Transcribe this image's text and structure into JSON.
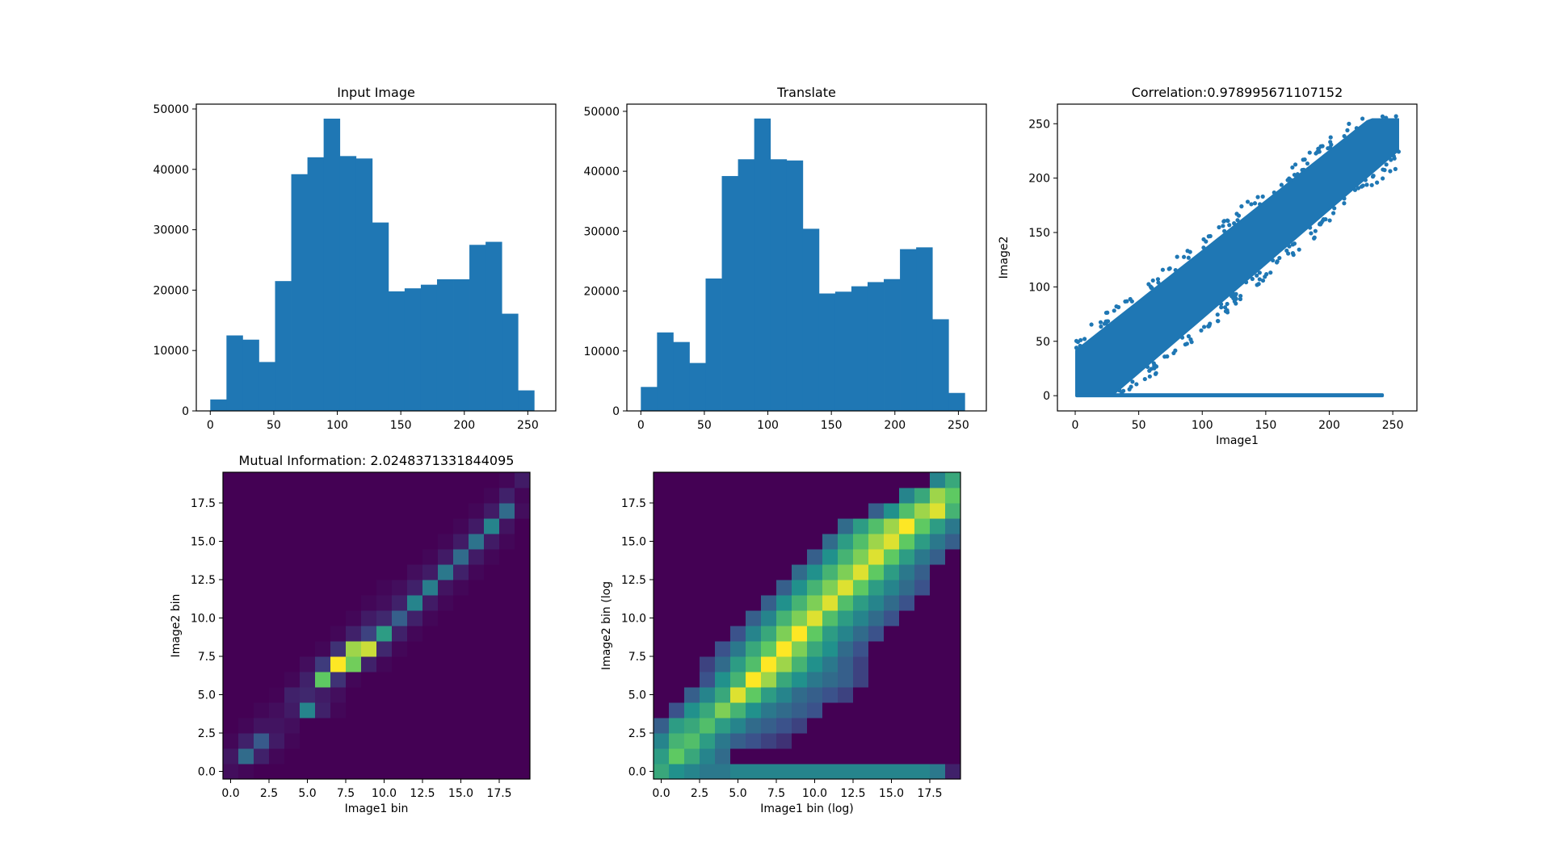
{
  "chart_data": [
    {
      "type": "bar",
      "title": "Input Image",
      "xlabel": "",
      "ylabel": "",
      "bin_edges": [
        0,
        12.75,
        25.5,
        38.25,
        51,
        63.75,
        76.5,
        89.25,
        102,
        114.75,
        127.5,
        140.25,
        153,
        165.75,
        178.5,
        191.25,
        204,
        216.75,
        229.5,
        242.25,
        255
      ],
      "values": [
        1900,
        12500,
        11800,
        8100,
        21500,
        39200,
        42000,
        48400,
        42200,
        41800,
        31200,
        19800,
        20300,
        20900,
        21800,
        21800,
        27500,
        28000,
        16100,
        3400
      ],
      "xlim": [
        -11,
        272
      ],
      "ylim": [
        0,
        50800
      ],
      "xticks": [
        0,
        50,
        100,
        150,
        200,
        250
      ],
      "yticks": [
        0,
        10000,
        20000,
        30000,
        40000,
        50000
      ],
      "color": "#1f77b4"
    },
    {
      "type": "bar",
      "title": "Translate",
      "xlabel": "",
      "ylabel": "",
      "bin_edges": [
        0,
        12.75,
        25.5,
        38.25,
        51,
        63.75,
        76.5,
        89.25,
        102,
        114.75,
        127.5,
        140.25,
        153,
        165.75,
        178.5,
        191.25,
        204,
        216.75,
        229.5,
        242.25,
        255
      ],
      "values": [
        4000,
        13100,
        11500,
        8000,
        22100,
        39200,
        42000,
        48800,
        42000,
        41800,
        30400,
        19600,
        19900,
        20800,
        21500,
        22000,
        27000,
        27300,
        15300,
        3000
      ],
      "xlim": [
        -11,
        272
      ],
      "ylim": [
        0,
        51200
      ],
      "xticks": [
        0,
        50,
        100,
        150,
        200,
        250
      ],
      "yticks": [
        0,
        10000,
        20000,
        30000,
        40000,
        50000
      ],
      "color": "#1f77b4"
    },
    {
      "type": "scatter",
      "title": "Correlation:0.978995671107152",
      "xlabel": "Image1",
      "ylabel": "Image2",
      "xlim": [
        -14,
        269
      ],
      "ylim": [
        -14,
        268
      ],
      "xticks": [
        0,
        50,
        100,
        150,
        200,
        250
      ],
      "yticks": [
        0,
        50,
        100,
        150,
        200,
        250
      ],
      "color": "#1f77b4",
      "diagonal_band": {
        "slope": 0.96,
        "intercept_lower_at_x0": 0,
        "intercept_upper_at_x0": 42,
        "upper_envelope_end": 255,
        "lower_envelope_end": 215
      },
      "zero_row": {
        "y": 0,
        "x_range": [
          0,
          243
        ]
      }
    },
    {
      "type": "heatmap",
      "title": "Mutual Information: 2.0248371331844095",
      "xlabel": "Image1 bin",
      "ylabel": "Image2 bin",
      "xticks": [
        0.0,
        2.5,
        5.0,
        7.5,
        10.0,
        12.5,
        15.0,
        17.5
      ],
      "yticks": [
        0.0,
        2.5,
        5.0,
        7.5,
        10.0,
        12.5,
        15.0,
        17.5
      ],
      "xlim": [
        -0.5,
        19.5
      ],
      "ylim": [
        -0.5,
        19.5
      ],
      "colormap": "viridis",
      "rows": [
        [
          0.04,
          0.02,
          0,
          0,
          0,
          0,
          0,
          0,
          0,
          0,
          0,
          0,
          0,
          0,
          0,
          0,
          0,
          0,
          0,
          0
        ],
        [
          0.07,
          0.35,
          0.1,
          0.02,
          0,
          0,
          0,
          0,
          0,
          0,
          0,
          0,
          0,
          0,
          0,
          0,
          0,
          0,
          0,
          0
        ],
        [
          0.02,
          0.1,
          0.28,
          0.08,
          0.02,
          0,
          0,
          0,
          0,
          0,
          0,
          0,
          0,
          0,
          0,
          0,
          0,
          0,
          0,
          0
        ],
        [
          0,
          0.02,
          0.06,
          0.06,
          0.04,
          0,
          0,
          0,
          0,
          0,
          0,
          0,
          0,
          0,
          0,
          0,
          0,
          0,
          0,
          0
        ],
        [
          0,
          0,
          0.02,
          0.04,
          0.08,
          0.45,
          0.1,
          0.02,
          0,
          0,
          0,
          0,
          0,
          0,
          0,
          0,
          0,
          0,
          0,
          0
        ],
        [
          0,
          0,
          0,
          0.01,
          0.1,
          0.12,
          0.08,
          0.04,
          0,
          0,
          0,
          0,
          0,
          0,
          0,
          0,
          0,
          0,
          0,
          0
        ],
        [
          0,
          0,
          0,
          0,
          0.02,
          0.1,
          0.75,
          0.15,
          0.02,
          0,
          0,
          0,
          0,
          0,
          0,
          0,
          0,
          0,
          0,
          0
        ],
        [
          0,
          0,
          0,
          0,
          0,
          0.04,
          0.18,
          1.0,
          0.78,
          0.1,
          0.02,
          0,
          0,
          0,
          0,
          0,
          0,
          0,
          0,
          0
        ],
        [
          0,
          0,
          0,
          0,
          0,
          0,
          0.02,
          0.15,
          0.85,
          0.92,
          0.12,
          0.02,
          0,
          0,
          0,
          0,
          0,
          0,
          0,
          0
        ],
        [
          0,
          0,
          0,
          0,
          0,
          0,
          0,
          0.02,
          0.1,
          0.2,
          0.55,
          0.1,
          0.02,
          0,
          0,
          0,
          0,
          0,
          0,
          0
        ],
        [
          0,
          0,
          0,
          0,
          0,
          0,
          0,
          0,
          0.02,
          0.08,
          0.12,
          0.3,
          0.1,
          0.02,
          0,
          0,
          0,
          0,
          0,
          0
        ],
        [
          0,
          0,
          0,
          0,
          0,
          0,
          0,
          0,
          0,
          0.02,
          0.04,
          0.1,
          0.45,
          0.08,
          0.02,
          0,
          0,
          0,
          0,
          0
        ],
        [
          0,
          0,
          0,
          0,
          0,
          0,
          0,
          0,
          0,
          0,
          0.02,
          0.04,
          0.1,
          0.42,
          0.06,
          0.02,
          0,
          0,
          0,
          0
        ],
        [
          0,
          0,
          0,
          0,
          0,
          0,
          0,
          0,
          0,
          0,
          0,
          0,
          0.04,
          0.08,
          0.4,
          0.1,
          0.02,
          0,
          0,
          0
        ],
        [
          0,
          0,
          0,
          0,
          0,
          0,
          0,
          0,
          0,
          0,
          0,
          0,
          0,
          0.02,
          0.08,
          0.35,
          0.08,
          0.02,
          0,
          0
        ],
        [
          0,
          0,
          0,
          0,
          0,
          0,
          0,
          0,
          0,
          0,
          0,
          0,
          0,
          0,
          0.02,
          0.08,
          0.38,
          0.08,
          0.02,
          0
        ],
        [
          0,
          0,
          0,
          0,
          0,
          0,
          0,
          0,
          0,
          0,
          0,
          0,
          0,
          0,
          0,
          0.02,
          0.08,
          0.45,
          0.06,
          0
        ],
        [
          0,
          0,
          0,
          0,
          0,
          0,
          0,
          0,
          0,
          0,
          0,
          0,
          0,
          0,
          0,
          0,
          0.02,
          0.08,
          0.35,
          0.04
        ],
        [
          0,
          0,
          0,
          0,
          0,
          0,
          0,
          0,
          0,
          0,
          0,
          0,
          0,
          0,
          0,
          0,
          0,
          0.02,
          0.1,
          0.02
        ],
        [
          0,
          0,
          0,
          0,
          0,
          0,
          0,
          0,
          0,
          0,
          0,
          0,
          0,
          0,
          0,
          0,
          0,
          0,
          0.02,
          0.08
        ]
      ]
    },
    {
      "type": "heatmap",
      "title": "",
      "xlabel": "Image1 bin (log)",
      "ylabel": "Image2 bin (log",
      "xticks": [
        0.0,
        2.5,
        5.0,
        7.5,
        10.0,
        12.5,
        15.0,
        17.5
      ],
      "yticks": [
        0.0,
        2.5,
        5.0,
        7.5,
        10.0,
        12.5,
        15.0,
        17.5
      ],
      "xlim": [
        -0.5,
        19.5
      ],
      "ylim": [
        -0.5,
        19.5
      ],
      "colormap": "viridis",
      "rows": [
        [
          0.6,
          0.5,
          0.45,
          0.4,
          0.4,
          0.45,
          0.45,
          0.45,
          0.45,
          0.45,
          0.45,
          0.45,
          0.45,
          0.45,
          0.45,
          0.45,
          0.45,
          0.45,
          0.4,
          0.1
        ],
        [
          0.55,
          0.75,
          0.6,
          0.45,
          0.35,
          0,
          0,
          0,
          0,
          0,
          0,
          0,
          0,
          0,
          0,
          0,
          0,
          0,
          0,
          0
        ],
        [
          0.45,
          0.65,
          0.7,
          0.55,
          0.4,
          0.3,
          0.25,
          0.2,
          0.15,
          0,
          0,
          0,
          0,
          0,
          0,
          0,
          0,
          0,
          0,
          0
        ],
        [
          0.3,
          0.55,
          0.6,
          0.7,
          0.55,
          0.45,
          0.35,
          0.3,
          0.25,
          0.2,
          0,
          0,
          0,
          0,
          0,
          0,
          0,
          0,
          0,
          0
        ],
        [
          0,
          0.25,
          0.5,
          0.6,
          0.8,
          0.65,
          0.5,
          0.4,
          0.35,
          0.3,
          0.25,
          0,
          0,
          0,
          0,
          0,
          0,
          0,
          0,
          0
        ],
        [
          0,
          0,
          0.3,
          0.45,
          0.6,
          0.95,
          0.75,
          0.55,
          0.45,
          0.35,
          0.3,
          0.25,
          0.2,
          0,
          0,
          0,
          0,
          0,
          0,
          0
        ],
        [
          0,
          0,
          0,
          0.25,
          0.5,
          0.65,
          1.0,
          0.85,
          0.6,
          0.5,
          0.4,
          0.35,
          0.3,
          0.2,
          0,
          0,
          0,
          0,
          0,
          0
        ],
        [
          0,
          0,
          0,
          0.2,
          0.35,
          0.55,
          0.7,
          1.0,
          0.85,
          0.65,
          0.5,
          0.4,
          0.3,
          0.2,
          0,
          0,
          0,
          0,
          0,
          0
        ],
        [
          0,
          0,
          0,
          0,
          0.25,
          0.4,
          0.6,
          0.75,
          1.0,
          0.8,
          0.6,
          0.5,
          0.35,
          0.25,
          0,
          0,
          0,
          0,
          0,
          0
        ],
        [
          0,
          0,
          0,
          0,
          0,
          0.25,
          0.45,
          0.6,
          0.8,
          1.0,
          0.75,
          0.55,
          0.45,
          0.35,
          0.25,
          0,
          0,
          0,
          0,
          0
        ],
        [
          0,
          0,
          0,
          0,
          0,
          0,
          0.3,
          0.45,
          0.65,
          0.8,
          0.95,
          0.7,
          0.55,
          0.45,
          0.35,
          0.25,
          0,
          0,
          0,
          0
        ],
        [
          0,
          0,
          0,
          0,
          0,
          0,
          0,
          0.3,
          0.5,
          0.65,
          0.8,
          0.95,
          0.7,
          0.55,
          0.45,
          0.35,
          0.25,
          0,
          0,
          0
        ],
        [
          0,
          0,
          0,
          0,
          0,
          0,
          0,
          0,
          0.3,
          0.5,
          0.65,
          0.8,
          0.95,
          0.75,
          0.55,
          0.45,
          0.35,
          0.25,
          0,
          0
        ],
        [
          0,
          0,
          0,
          0,
          0,
          0,
          0,
          0,
          0,
          0.35,
          0.5,
          0.65,
          0.8,
          0.95,
          0.75,
          0.55,
          0.4,
          0.3,
          0,
          0
        ],
        [
          0,
          0,
          0,
          0,
          0,
          0,
          0,
          0,
          0,
          0,
          0.3,
          0.5,
          0.65,
          0.8,
          0.95,
          0.75,
          0.55,
          0.4,
          0.3,
          0
        ],
        [
          0,
          0,
          0,
          0,
          0,
          0,
          0,
          0,
          0,
          0,
          0,
          0.35,
          0.55,
          0.7,
          0.85,
          0.95,
          0.75,
          0.55,
          0.4,
          0.3
        ],
        [
          0,
          0,
          0,
          0,
          0,
          0,
          0,
          0,
          0,
          0,
          0,
          0,
          0.35,
          0.55,
          0.7,
          0.85,
          1.0,
          0.75,
          0.55,
          0.4
        ],
        [
          0,
          0,
          0,
          0,
          0,
          0,
          0,
          0,
          0,
          0,
          0,
          0,
          0,
          0,
          0.3,
          0.5,
          0.7,
          0.85,
          0.95,
          0.65
        ],
        [
          0,
          0,
          0,
          0,
          0,
          0,
          0,
          0,
          0,
          0,
          0,
          0,
          0,
          0,
          0,
          0,
          0.45,
          0.6,
          0.85,
          0.75
        ],
        [
          0,
          0,
          0,
          0,
          0,
          0,
          0,
          0,
          0,
          0,
          0,
          0,
          0,
          0,
          0,
          0,
          0,
          0,
          0.45,
          0.6
        ]
      ]
    }
  ]
}
